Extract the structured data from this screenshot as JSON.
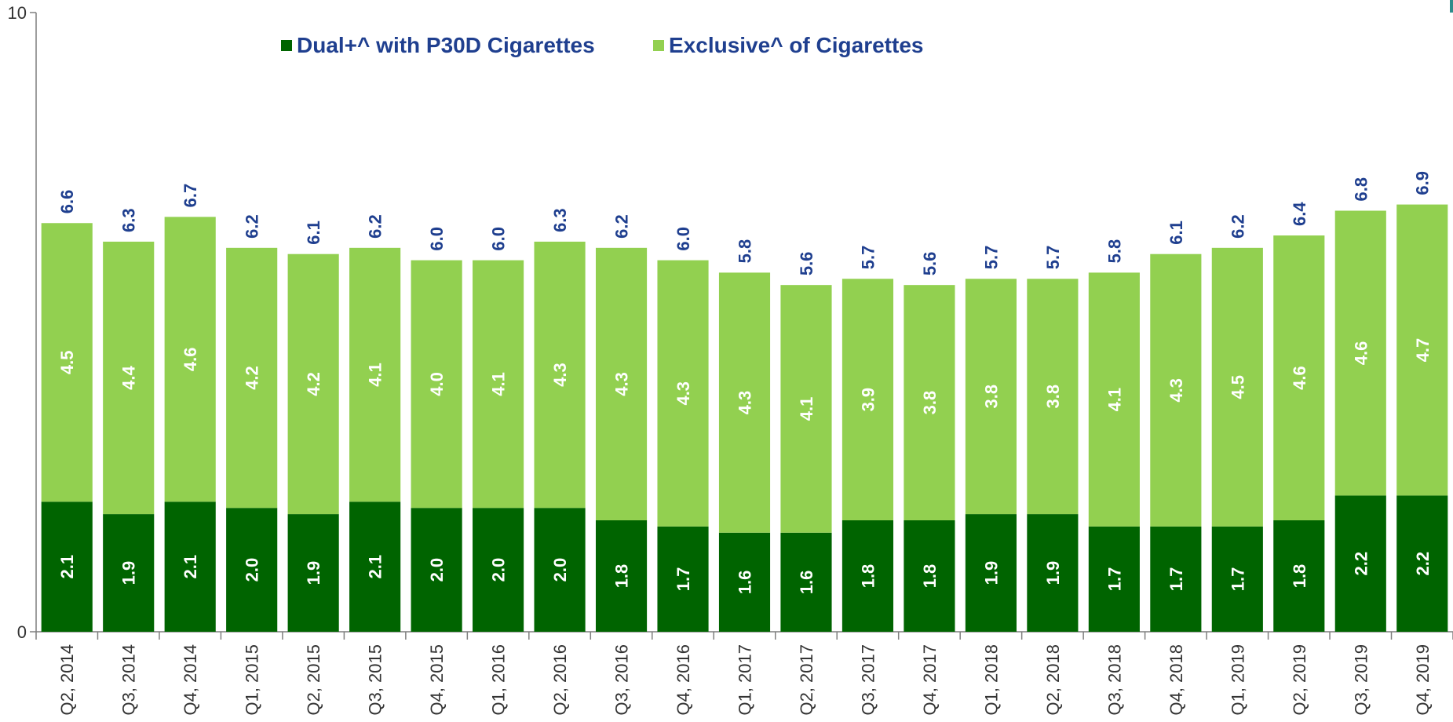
{
  "colors": {
    "dual": "#006400",
    "exclusive": "#92d050",
    "value_label_top": "#1f3f8f",
    "value_label_inside": "#ffffff",
    "axis": "#7f7f7f",
    "title": "#1f3f8f"
  },
  "chart_data": {
    "type": "bar",
    "stacked": true,
    "title": "",
    "xlabel": "",
    "ylabel": "",
    "ylim": [
      0,
      10
    ],
    "yticks": [
      "0",
      "10"
    ],
    "grid": false,
    "legend_position": "top-center",
    "categories": [
      "Q2, 2014",
      "Q3, 2014",
      "Q4, 2014",
      "Q1, 2015",
      "Q2, 2015",
      "Q3, 2015",
      "Q4, 2015",
      "Q1, 2016",
      "Q2, 2016",
      "Q3, 2016",
      "Q4, 2016",
      "Q1, 2017",
      "Q2, 2017",
      "Q3, 2017",
      "Q4, 2017",
      "Q1, 2018",
      "Q2, 2018",
      "Q3, 2018",
      "Q4, 2018",
      "Q1, 2019",
      "Q2, 2019",
      "Q3, 2019",
      "Q4, 2019"
    ],
    "series": [
      {
        "name": "Dual+^ with P30D Cigarettes",
        "values": [
          "2.1",
          "1.9",
          "2.1",
          "2.0",
          "1.9",
          "2.1",
          "2.0",
          "2.0",
          "2.0",
          "1.8",
          "1.7",
          "1.6",
          "1.6",
          "1.8",
          "1.8",
          "1.9",
          "1.9",
          "1.7",
          "1.7",
          "1.7",
          "1.8",
          "2.2",
          "2.2"
        ]
      },
      {
        "name": "Exclusive^ of Cigarettes",
        "values": [
          "4.5",
          "4.4",
          "4.6",
          "4.2",
          "4.2",
          "4.1",
          "4.0",
          "4.1",
          "4.3",
          "4.3",
          "4.3",
          "4.3",
          "4.1",
          "3.9",
          "3.8",
          "3.8",
          "3.8",
          "4.1",
          "4.3",
          "4.5",
          "4.6",
          "4.6",
          "4.7"
        ]
      }
    ],
    "totals": [
      "6.6",
      "6.3",
      "6.7",
      "6.2",
      "6.1",
      "6.2",
      "6.0",
      "6.0",
      "6.3",
      "6.2",
      "6.0",
      "5.8",
      "5.6",
      "5.7",
      "5.6",
      "5.7",
      "5.7",
      "5.8",
      "6.1",
      "6.2",
      "6.4",
      "6.8",
      "6.9"
    ]
  }
}
